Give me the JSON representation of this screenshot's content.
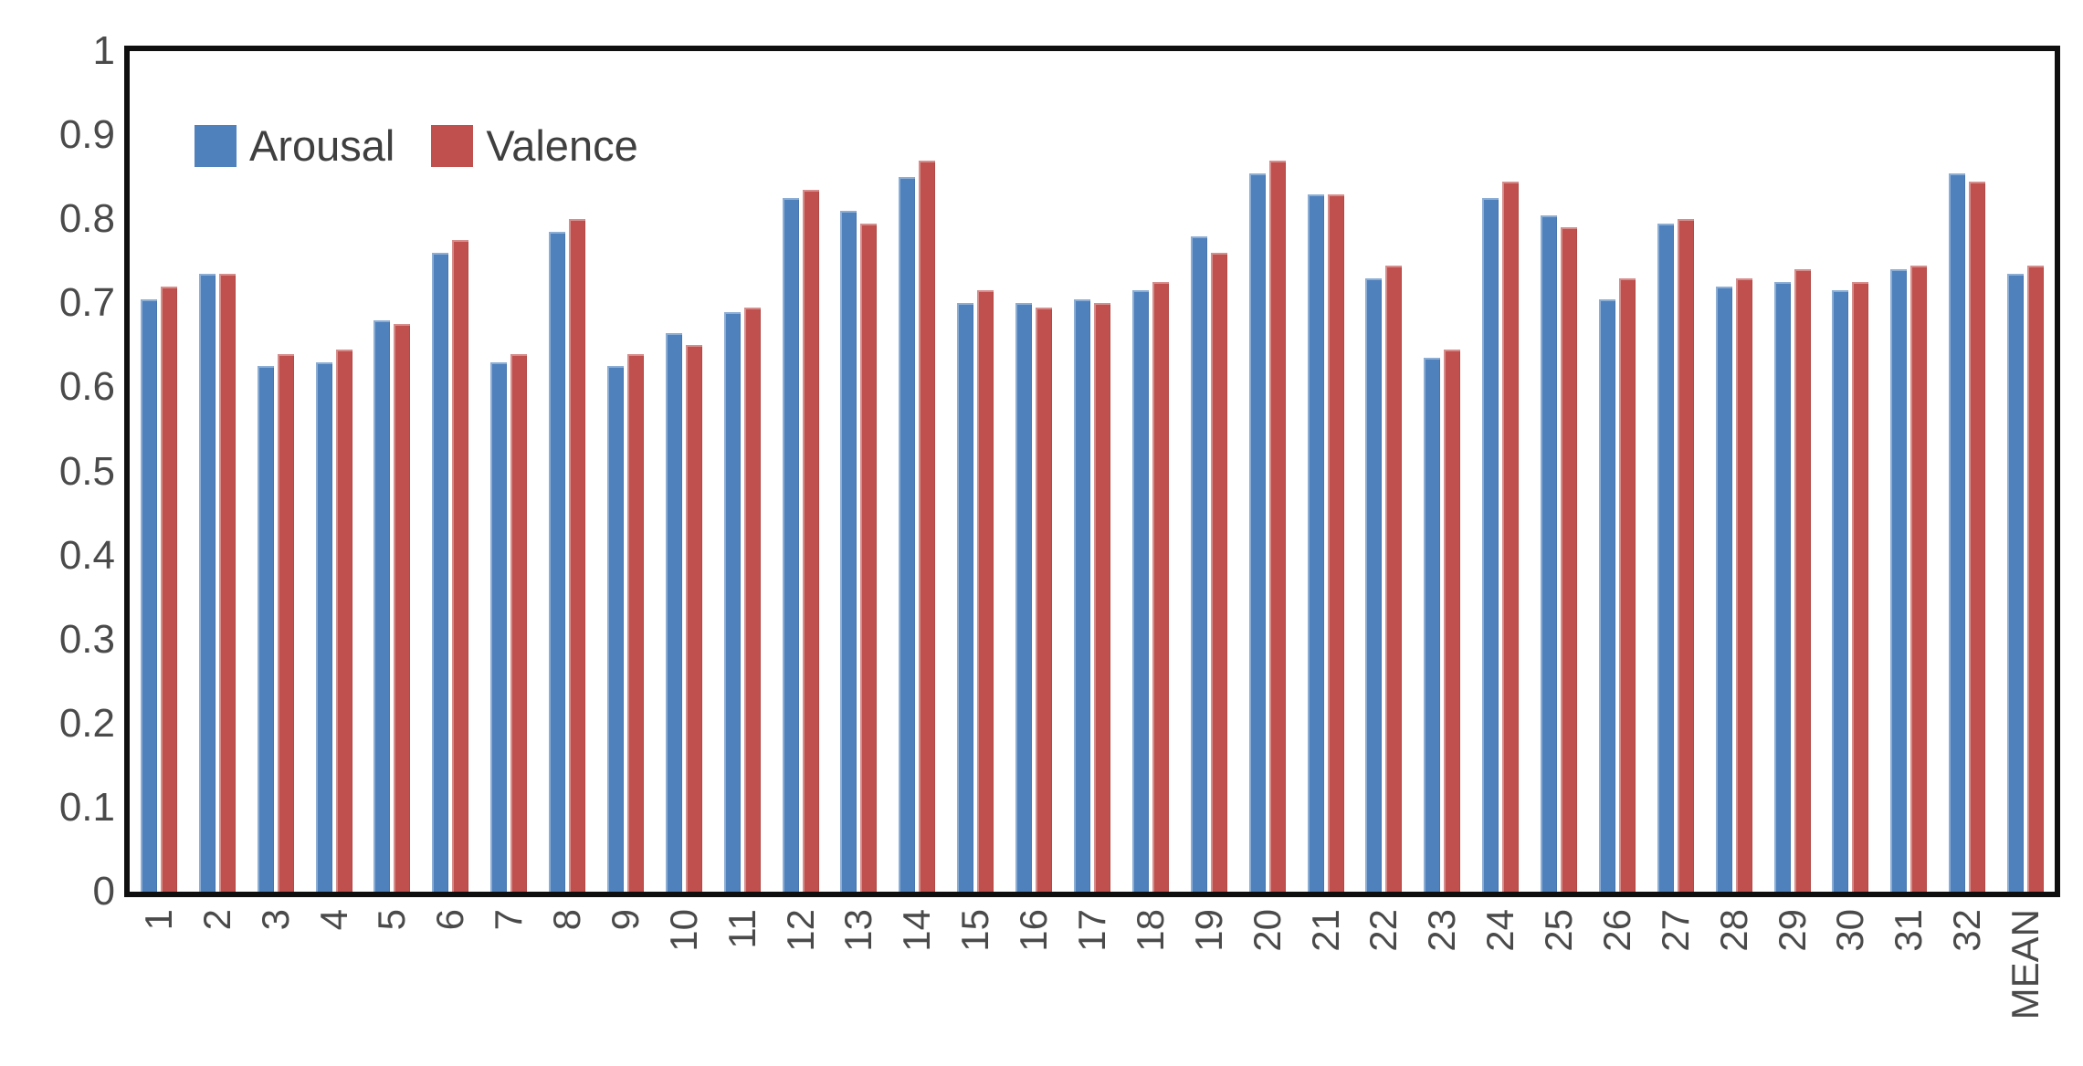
{
  "chart_data": {
    "type": "bar",
    "title": "",
    "xlabel": "",
    "ylabel": "",
    "categories": [
      "1",
      "2",
      "3",
      "4",
      "5",
      "6",
      "7",
      "8",
      "9",
      "10",
      "11",
      "12",
      "13",
      "14",
      "15",
      "16",
      "17",
      "18",
      "19",
      "20",
      "21",
      "22",
      "23",
      "24",
      "25",
      "26",
      "27",
      "28",
      "29",
      "30",
      "31",
      "32",
      "MEAN"
    ],
    "series": [
      {
        "name": "Arousal",
        "color": "#4f81bd",
        "values": [
          0.705,
          0.735,
          0.625,
          0.63,
          0.68,
          0.76,
          0.63,
          0.785,
          0.625,
          0.665,
          0.69,
          0.825,
          0.81,
          0.85,
          0.7,
          0.7,
          0.705,
          0.715,
          0.78,
          0.855,
          0.83,
          0.73,
          0.635,
          0.825,
          0.805,
          0.705,
          0.795,
          0.72,
          0.725,
          0.715,
          0.74,
          0.855,
          0.735
        ]
      },
      {
        "name": "Valence",
        "color": "#c0504d",
        "values": [
          0.72,
          0.735,
          0.64,
          0.645,
          0.675,
          0.775,
          0.64,
          0.8,
          0.64,
          0.65,
          0.695,
          0.835,
          0.795,
          0.87,
          0.715,
          0.695,
          0.7,
          0.725,
          0.76,
          0.87,
          0.83,
          0.745,
          0.645,
          0.845,
          0.79,
          0.73,
          0.8,
          0.73,
          0.74,
          0.725,
          0.745,
          0.845,
          0.745
        ]
      }
    ],
    "ylim": [
      0,
      1
    ],
    "y_ticks": [
      {
        "label": "0",
        "value": 0
      },
      {
        "label": "0.1",
        "value": 0.1
      },
      {
        "label": "0.2",
        "value": 0.2
      },
      {
        "label": "0.3",
        "value": 0.3
      },
      {
        "label": "0.4",
        "value": 0.4
      },
      {
        "label": "0.5",
        "value": 0.5
      },
      {
        "label": "0.6",
        "value": 0.6
      },
      {
        "label": "0.7",
        "value": 0.7
      },
      {
        "label": "0.8",
        "value": 0.8
      },
      {
        "label": "0.9",
        "value": 0.9
      },
      {
        "label": "1",
        "value": 1
      }
    ],
    "grid": false,
    "legend_position": "inside-top-left",
    "x_tick_rotation_degrees": -90,
    "axis_text_color": "#4a4a4a",
    "axis_line_color": "#0f0f0f",
    "background_color": "#ffffff"
  }
}
